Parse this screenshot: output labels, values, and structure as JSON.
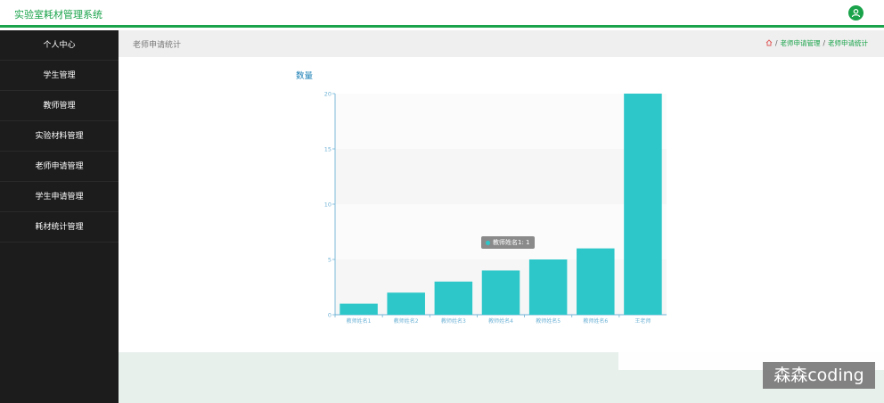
{
  "header": {
    "app_title": "实验室耗材管理系统",
    "avatar_icon": "user-icon"
  },
  "sidebar": {
    "items": [
      {
        "label": "个人中心"
      },
      {
        "label": "学生管理"
      },
      {
        "label": "教师管理"
      },
      {
        "label": "实验材料管理"
      },
      {
        "label": "老师申请管理"
      },
      {
        "label": "学生申请管理"
      },
      {
        "label": "耗材统计管理"
      }
    ]
  },
  "breadcrumb": {
    "page_title": "老师申请统计",
    "home_icon": "home-icon",
    "items": [
      "老师申请管理",
      "老师申请统计"
    ],
    "separator": "/"
  },
  "chart_data": {
    "type": "bar",
    "title": "数量",
    "categories": [
      "教师姓名1",
      "教师姓名2",
      "教师姓名3",
      "教师姓名4",
      "教师姓名5",
      "教师姓名6",
      "王老师"
    ],
    "values": [
      1,
      2,
      3,
      4,
      5,
      6,
      20
    ],
    "ylim": [
      0,
      20
    ],
    "yticks": [
      0,
      5,
      10,
      15,
      20
    ],
    "bar_color": "#2ec7c9",
    "axis_color": "#6fb3d6",
    "band_colors": [
      "#f6f6f6",
      "#fbfbfb"
    ],
    "grid": false
  },
  "tooltip": {
    "text": "教师姓名1: 1"
  },
  "watermark": {
    "text": "森森coding"
  },
  "colors": {
    "accent": "#1aa34a",
    "sidebar_bg": "#1c1c1c"
  }
}
